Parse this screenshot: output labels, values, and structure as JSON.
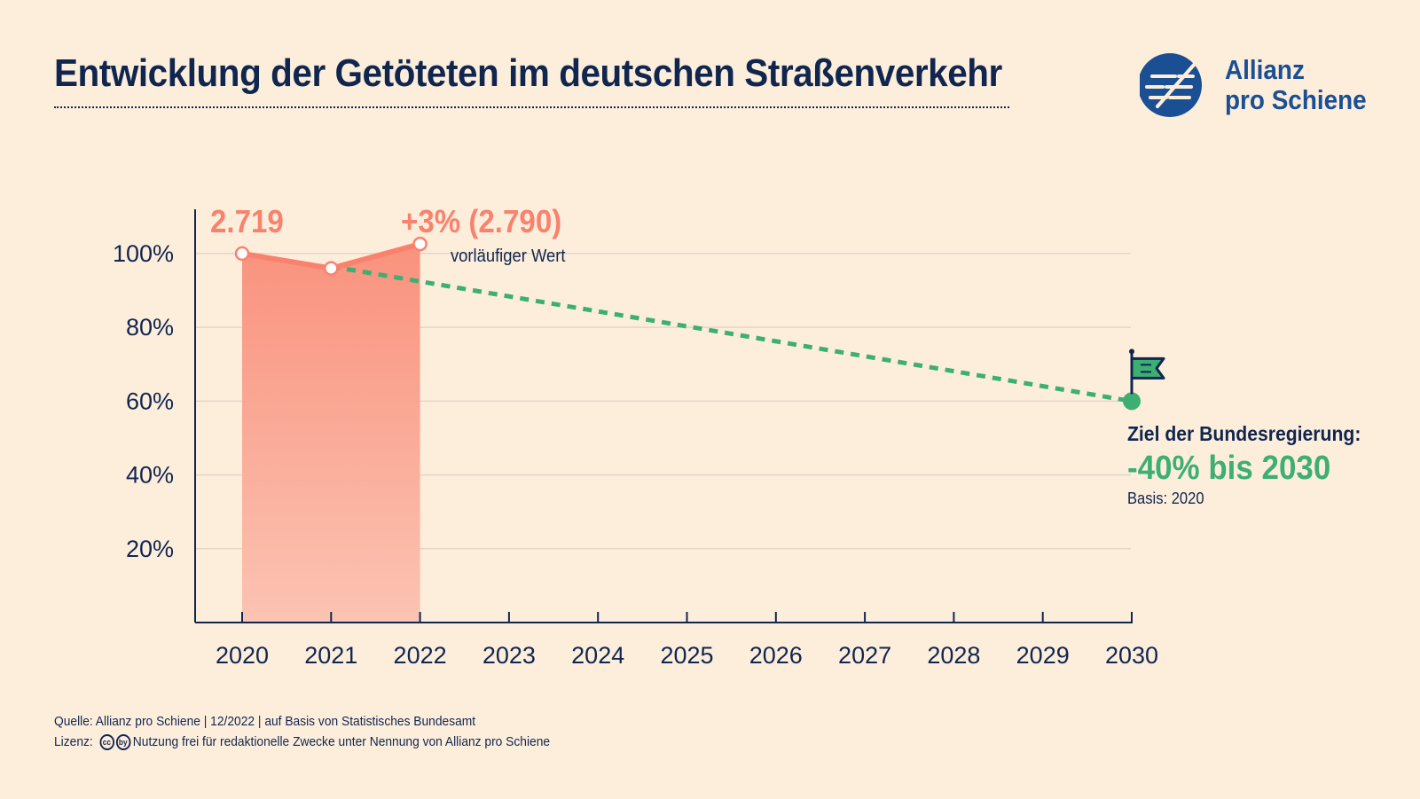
{
  "header": {
    "title": "Entwicklung der Getöteten im deutschen Straßenverkehr"
  },
  "logo": {
    "line1": "Allianz",
    "line2": "pro Schiene",
    "color": "#1a4f93"
  },
  "colors": {
    "background": "#fdeedc",
    "text": "#10264f",
    "actual": "#f9826e",
    "actual_fill_top": "#f9927d",
    "actual_fill_bottom": "#fcc3b3",
    "target": "#3daf73",
    "grid": "#e5d5c8"
  },
  "chart_data": {
    "type": "line",
    "x": [
      "2020",
      "2021",
      "2022",
      "2023",
      "2024",
      "2025",
      "2026",
      "2027",
      "2028",
      "2029",
      "2030"
    ],
    "yticks": [
      "20%",
      "40%",
      "60%",
      "80%",
      "100%"
    ],
    "ytick_values": [
      20,
      40,
      60,
      80,
      100
    ],
    "ylim": [
      0,
      112
    ],
    "grid": true,
    "series": [
      {
        "kind": "actual",
        "x": [
          "2020",
          "2021",
          "2022"
        ],
        "values": [
          100,
          96,
          102.6
        ],
        "style": "solid area"
      },
      {
        "kind": "target",
        "x": [
          "2021",
          "2030"
        ],
        "values": [
          96.5,
          60
        ],
        "style": "dashed"
      }
    ],
    "annotations": {
      "start_value": "2.719",
      "end_change": "+3% (2.790)",
      "end_note": "vorläufiger Wert"
    }
  },
  "target": {
    "label": "Ziel der Bundesregierung:",
    "value": "-40% bis 2030",
    "basis": "Basis: 2020"
  },
  "footer": {
    "source": "Quelle: Allianz pro Schiene | 12/2022 | auf Basis von Statistisches Bundesamt",
    "license_label": "Lizenz:",
    "license_icons": [
      "cc",
      "by"
    ],
    "license_text": "Nutzung frei für redaktionelle Zwecke unter Nennung von Allianz pro Schiene"
  }
}
